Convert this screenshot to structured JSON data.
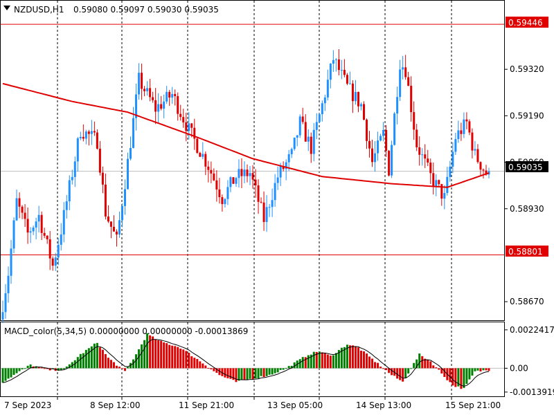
{
  "header": {
    "symbol_timeframe": "NZDUSD,H1",
    "ohlc": "0.59080 0.59097 0.59030 0.59035",
    "macd_title": "MACD_color(5,34,5) 0.00000000 0.00000000 -0.00013869"
  },
  "levels": {
    "upper": "0.59446",
    "lower": "0.58801",
    "current": "0.59035"
  },
  "colors": {
    "bull": "#1e90ff",
    "bear": "#e00000",
    "ma": "#e00000",
    "hist_up": "#008000",
    "hist_down": "#e00000",
    "level_line": "#e00000",
    "current_label_bg": "#000000"
  },
  "chart_data": [
    {
      "type": "candlestick",
      "symbol": "NZDUSD",
      "timeframe": "H1",
      "yticks": [
        "0.59320",
        "0.59190",
        "0.59060",
        "0.58930",
        "0.58670"
      ],
      "ylim": [
        0.5862,
        0.5951
      ],
      "xticks": [
        "7 Sep 2023",
        "8 Sep 12:00",
        "11 Sep 21:00",
        "13 Sep 05:00",
        "14 Sep 13:00",
        "15 Sep 21:00"
      ],
      "horizontal_lines": [
        0.59446,
        0.58801
      ],
      "current_price": 0.59035,
      "moving_average_anchors": [
        [
          0,
          0.5928
        ],
        [
          25,
          0.5923
        ],
        [
          45,
          0.592
        ],
        [
          70,
          0.5913
        ],
        [
          90,
          0.5907
        ],
        [
          115,
          0.5902
        ],
        [
          140,
          0.59
        ],
        [
          160,
          0.5899
        ],
        [
          175,
          0.5903
        ]
      ],
      "price_anchors": [
        [
          0,
          0.5862
        ],
        [
          3,
          0.5875
        ],
        [
          6,
          0.5895
        ],
        [
          10,
          0.5886
        ],
        [
          14,
          0.5891
        ],
        [
          19,
          0.5877
        ],
        [
          22,
          0.5887
        ],
        [
          29,
          0.5915
        ],
        [
          35,
          0.5912
        ],
        [
          38,
          0.5892
        ],
        [
          42,
          0.5884
        ],
        [
          46,
          0.5906
        ],
        [
          50,
          0.5929
        ],
        [
          56,
          0.5921
        ],
        [
          62,
          0.5925
        ],
        [
          68,
          0.5915
        ],
        [
          75,
          0.5905
        ],
        [
          80,
          0.5896
        ],
        [
          85,
          0.5902
        ],
        [
          90,
          0.5903
        ],
        [
          95,
          0.589
        ],
        [
          100,
          0.5902
        ],
        [
          105,
          0.5908
        ],
        [
          108,
          0.5917
        ],
        [
          112,
          0.591
        ],
        [
          116,
          0.5922
        ],
        [
          120,
          0.5935
        ],
        [
          125,
          0.5927
        ],
        [
          130,
          0.5922
        ],
        [
          134,
          0.5906
        ],
        [
          138,
          0.5914
        ],
        [
          140,
          0.5904
        ],
        [
          144,
          0.5934
        ],
        [
          146,
          0.5932
        ],
        [
          150,
          0.5911
        ],
        [
          155,
          0.5902
        ],
        [
          160,
          0.5896
        ],
        [
          164,
          0.5913
        ],
        [
          168,
          0.5917
        ],
        [
          171,
          0.5908
        ],
        [
          175,
          0.5903
        ]
      ]
    },
    {
      "type": "bar",
      "name": "MACD_color(5,34,5)",
      "yticks": [
        "0.0022417",
        "0.00",
        "-0.0013919"
      ],
      "ylim": [
        -0.0016,
        0.0026
      ],
      "macd_anchors": [
        [
          0,
          -0.0008
        ],
        [
          4,
          -0.0004
        ],
        [
          10,
          0.0002
        ],
        [
          16,
          -0.0001
        ],
        [
          22,
          -0.0001
        ],
        [
          28,
          0.0008
        ],
        [
          34,
          0.0015
        ],
        [
          38,
          0.0006
        ],
        [
          44,
          -0.0002
        ],
        [
          48,
          0.0008
        ],
        [
          52,
          0.002
        ],
        [
          56,
          0.0016
        ],
        [
          64,
          0.0012
        ],
        [
          72,
          0.0003
        ],
        [
          78,
          -0.0004
        ],
        [
          84,
          -0.0008
        ],
        [
          90,
          -0.0006
        ],
        [
          96,
          -0.0004
        ],
        [
          102,
          0.0
        ],
        [
          110,
          0.0008
        ],
        [
          114,
          0.001
        ],
        [
          118,
          0.0007
        ],
        [
          124,
          0.0014
        ],
        [
          128,
          0.0012
        ],
        [
          134,
          0.0004
        ],
        [
          140,
          -0.0004
        ],
        [
          144,
          -0.0008
        ],
        [
          150,
          0.0008
        ],
        [
          154,
          0.0004
        ],
        [
          158,
          -0.0003
        ],
        [
          162,
          -0.001
        ],
        [
          166,
          -0.0012
        ],
        [
          170,
          -0.0002
        ],
        [
          175,
          -0.0001
        ]
      ]
    }
  ]
}
